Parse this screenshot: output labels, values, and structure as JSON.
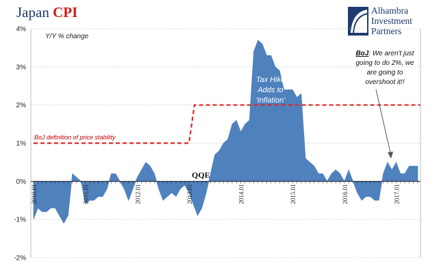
{
  "header": {
    "title_part1": "Japan",
    "title_part2": "CPI"
  },
  "logo": {
    "line1": "Alhambra",
    "line2": "Investment",
    "line3": "Partners"
  },
  "colors": {
    "area": "#4f81bd",
    "policy_line": "#e02424",
    "annotation_red": "#c00000",
    "annotation_white": "#ffffff",
    "annotation_dark": "#111111",
    "title_blue": "#1f3a6e",
    "title_red": "#d01c1c",
    "grid": "#bfbfbf"
  },
  "chart_data": {
    "type": "area",
    "title": "Japan CPI",
    "subtitle": "Y/Y % change",
    "ylim": [
      -2,
      4
    ],
    "y_ticks": [
      -2,
      -1,
      0,
      1,
      2,
      3,
      4
    ],
    "y_tick_labels": [
      "-2%",
      "-1%",
      "0%",
      "1%",
      "2%",
      "3%",
      "4%"
    ],
    "grid": "horizontal dotted",
    "x_range": [
      "2010-01",
      "2017-06"
    ],
    "x_tick_labels": [
      {
        "label": "2010.01",
        "month": "2010-01"
      },
      {
        "label": "2011.01",
        "month": "2011-01"
      },
      {
        "label": "2012.01",
        "month": "2012-01"
      },
      {
        "label": "2013.01",
        "month": "2013-01"
      },
      {
        "label": "2014.01",
        "month": "2014-01"
      },
      {
        "label": "2015.01",
        "month": "2015-01"
      },
      {
        "label": "2016.01",
        "month": "2016-01"
      },
      {
        "label": "2017.01",
        "month": "2017-01"
      }
    ],
    "series": [
      {
        "months": [
          "2010-01",
          "2010-02",
          "2010-03",
          "2010-04",
          "2010-05",
          "2010-06",
          "2010-07",
          "2010-08",
          "2010-09",
          "2010-10",
          "2010-11",
          "2010-12",
          "2011-01",
          "2011-02",
          "2011-03",
          "2011-04",
          "2011-05",
          "2011-06",
          "2011-07",
          "2011-08",
          "2011-09",
          "2011-10",
          "2011-11",
          "2011-12",
          "2012-01",
          "2012-02",
          "2012-03",
          "2012-04",
          "2012-05",
          "2012-06",
          "2012-07",
          "2012-08",
          "2012-09",
          "2012-10",
          "2012-11",
          "2012-12",
          "2013-01",
          "2013-02",
          "2013-03",
          "2013-04",
          "2013-05",
          "2013-06",
          "2013-07",
          "2013-08",
          "2013-09",
          "2013-10",
          "2013-11",
          "2013-12",
          "2014-01",
          "2014-02",
          "2014-03",
          "2014-04",
          "2014-05",
          "2014-06",
          "2014-07",
          "2014-08",
          "2014-09",
          "2014-10",
          "2014-11",
          "2014-12",
          "2015-01",
          "2015-02",
          "2015-03",
          "2015-04",
          "2015-05",
          "2015-06",
          "2015-07",
          "2015-08",
          "2015-09",
          "2015-10",
          "2015-11",
          "2015-12",
          "2016-01",
          "2016-02",
          "2016-03",
          "2016-04",
          "2016-05",
          "2016-06",
          "2016-07",
          "2016-08",
          "2016-09",
          "2016-10",
          "2016-11",
          "2016-12",
          "2017-01",
          "2017-02",
          "2017-03",
          "2017-04",
          "2017-05",
          "2017-06"
        ],
        "values": [
          -1.0,
          -0.7,
          -0.8,
          -0.8,
          -0.7,
          -0.7,
          -0.9,
          -1.1,
          -0.9,
          0.2,
          0.1,
          0.0,
          -0.6,
          -0.5,
          -0.5,
          -0.4,
          -0.4,
          -0.2,
          0.2,
          0.2,
          0.0,
          -0.2,
          -0.5,
          -0.2,
          0.1,
          0.3,
          0.5,
          0.4,
          0.2,
          -0.2,
          -0.5,
          -0.4,
          -0.3,
          -0.4,
          -0.2,
          -0.1,
          -0.3,
          -0.6,
          -0.9,
          -0.7,
          -0.3,
          0.2,
          0.7,
          0.8,
          1.0,
          1.1,
          1.5,
          1.6,
          1.3,
          1.5,
          1.6,
          3.4,
          3.7,
          3.6,
          3.3,
          3.3,
          3.0,
          2.9,
          2.4,
          2.4,
          2.4,
          2.2,
          2.3,
          0.6,
          0.5,
          0.4,
          0.2,
          0.2,
          0.0,
          0.2,
          0.3,
          0.2,
          0.0,
          0.3,
          0.0,
          -0.3,
          -0.5,
          -0.4,
          -0.4,
          -0.5,
          -0.5,
          0.2,
          0.5,
          0.3,
          0.5,
          0.2,
          0.2,
          0.4,
          0.4,
          0.4
        ]
      }
    ],
    "policy_target": [
      {
        "from": "2010-01",
        "to": "2013-01",
        "value": 1
      },
      {
        "from": "2013-01",
        "to": "2017-06",
        "value": 2
      }
    ],
    "annotations": {
      "boj_definition": "BoJ definition of price stability",
      "qqe": "QQE",
      "tax_hike_1": "Tax Hike",
      "tax_hike_2": "Adds to",
      "tax_hike_3": "'Inflation'",
      "boj_quote_1_bold": "BoJ",
      "boj_quote_1_rest": ": We aren't just",
      "boj_quote_2": "going to do 2%, we",
      "boj_quote_3": "are going to",
      "boj_quote_4": "overshoot it!!"
    }
  }
}
